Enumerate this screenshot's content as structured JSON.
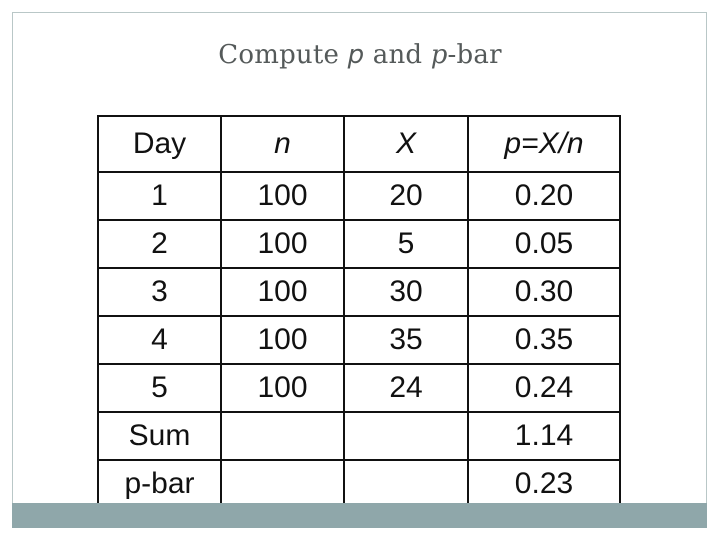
{
  "slide": {
    "title_parts": [
      "Compute ",
      "p",
      " and ",
      "p",
      "-bar"
    ]
  },
  "table": {
    "headers": [
      "Day",
      "n",
      "X",
      "p=X/n"
    ],
    "rows": [
      [
        "1",
        "100",
        "20",
        "0.20"
      ],
      [
        "2",
        "100",
        "5",
        "0.05"
      ],
      [
        "3",
        "100",
        "30",
        "0.30"
      ],
      [
        "4",
        "100",
        "35",
        "0.35"
      ],
      [
        "5",
        "100",
        "24",
        "0.24"
      ],
      [
        "Sum",
        "",
        "",
        "1.14"
      ],
      [
        "p-bar",
        "",
        "",
        "0.23"
      ]
    ]
  },
  "colors": {
    "accent_bar": "#8fa7aa",
    "frame": "#b9c7c7",
    "title_text": "#555a5a"
  }
}
